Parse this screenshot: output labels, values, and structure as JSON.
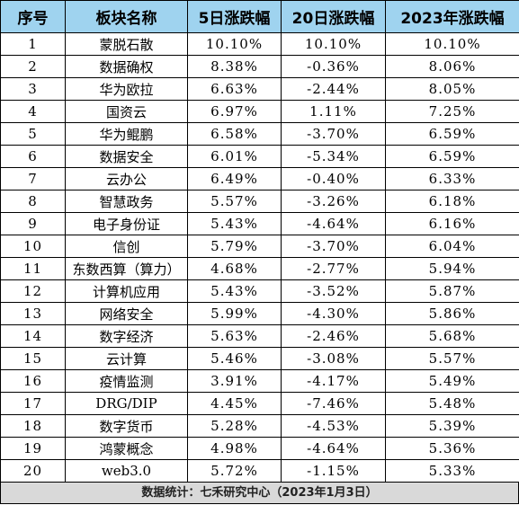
{
  "table": {
    "headers": [
      "序号",
      "板块名称",
      "5日涨跌幅",
      "20日涨跌幅",
      "2023年涨跌幅"
    ],
    "rows": [
      {
        "no": "1",
        "name": "蒙脱石散",
        "d5": "10.10%",
        "d20": "10.10%",
        "ytd": "10.10%"
      },
      {
        "no": "2",
        "name": "数据确权",
        "d5": "8.38%",
        "d20": "-0.36%",
        "ytd": "8.06%"
      },
      {
        "no": "3",
        "name": "华为欧拉",
        "d5": "6.63%",
        "d20": "-2.44%",
        "ytd": "8.05%"
      },
      {
        "no": "4",
        "name": "国资云",
        "d5": "6.97%",
        "d20": "1.11%",
        "ytd": "7.25%"
      },
      {
        "no": "5",
        "name": "华为鲲鹏",
        "d5": "6.58%",
        "d20": "-3.70%",
        "ytd": "6.59%"
      },
      {
        "no": "6",
        "name": "数据安全",
        "d5": "6.01%",
        "d20": "-5.34%",
        "ytd": "6.59%"
      },
      {
        "no": "7",
        "name": "云办公",
        "d5": "6.49%",
        "d20": "-0.40%",
        "ytd": "6.33%"
      },
      {
        "no": "8",
        "name": "智慧政务",
        "d5": "5.57%",
        "d20": "-3.26%",
        "ytd": "6.18%"
      },
      {
        "no": "9",
        "name": "电子身份证",
        "d5": "5.43%",
        "d20": "-4.64%",
        "ytd": "6.16%"
      },
      {
        "no": "10",
        "name": "信创",
        "d5": "5.79%",
        "d20": "-3.70%",
        "ytd": "6.04%"
      },
      {
        "no": "11",
        "name": "东数西算（算力）",
        "d5": "4.68%",
        "d20": "-2.77%",
        "ytd": "5.94%"
      },
      {
        "no": "12",
        "name": "计算机应用",
        "d5": "5.43%",
        "d20": "-3.52%",
        "ytd": "5.87%"
      },
      {
        "no": "13",
        "name": "网络安全",
        "d5": "5.99%",
        "d20": "-4.30%",
        "ytd": "5.86%"
      },
      {
        "no": "14",
        "name": "数字经济",
        "d5": "5.63%",
        "d20": "-2.46%",
        "ytd": "5.68%"
      },
      {
        "no": "15",
        "name": "云计算",
        "d5": "5.46%",
        "d20": "-3.08%",
        "ytd": "5.57%"
      },
      {
        "no": "16",
        "name": "疫情监测",
        "d5": "3.91%",
        "d20": "-4.17%",
        "ytd": "5.49%"
      },
      {
        "no": "17",
        "name": "DRG/DIP",
        "d5": "4.45%",
        "d20": "-7.46%",
        "ytd": "5.48%"
      },
      {
        "no": "18",
        "name": "数字货币",
        "d5": "5.28%",
        "d20": "-4.53%",
        "ytd": "5.39%"
      },
      {
        "no": "19",
        "name": "鸿蒙概念",
        "d5": "4.98%",
        "d20": "-4.64%",
        "ytd": "5.36%"
      },
      {
        "no": "20",
        "name": "web3.0",
        "d5": "5.72%",
        "d20": "-1.15%",
        "ytd": "5.33%"
      }
    ]
  },
  "footer": {
    "text": "数据统计：七禾研究中心（2023年1月3日）"
  },
  "colors": {
    "header_bg": "#9fd3ef",
    "footer_bg": "#d9d9d9"
  }
}
